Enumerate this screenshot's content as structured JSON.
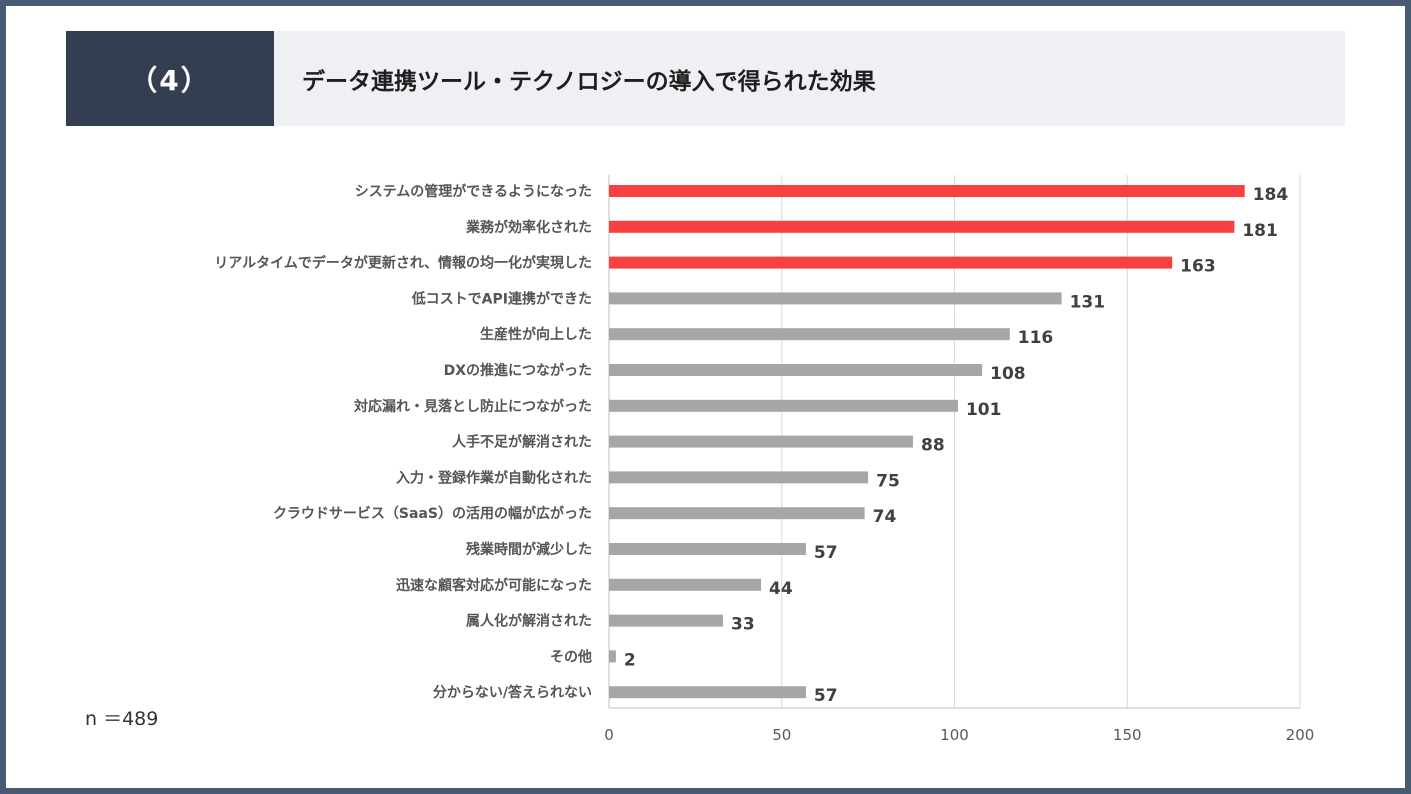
{
  "header": {
    "number": "（4）",
    "title": "データ連携ツール・テクノロジーの導入で得られた効果"
  },
  "sample_size": "n ＝489",
  "colors": {
    "highlight": "#f84040",
    "normal": "#a6a6a6",
    "header_dark": "#333e50",
    "header_light": "#eff0f4",
    "frame": "#495a73"
  },
  "chart_data": {
    "type": "bar",
    "orientation": "horizontal",
    "categories": [
      "システムの管理ができるようになった",
      "業務が効率化された",
      "リアルタイムでデータが更新され、情報の均一化が実現した",
      "低コストでAPI連携ができた",
      "生産性が向上した",
      "DXの推進につながった",
      "対応漏れ・見落とし防止につながった",
      "人手不足が解消された",
      "入力・登録作業が自動化された",
      "クラウドサービス（SaaS）の活用の幅が広がった",
      "残業時間が減少した",
      "迅速な顧客対応が可能になった",
      "属人化が解消された",
      "その他",
      "分からない/答えられない"
    ],
    "values": [
      184,
      181,
      163,
      131,
      116,
      108,
      101,
      88,
      75,
      74,
      57,
      44,
      33,
      2,
      57
    ],
    "highlighted": [
      true,
      true,
      true,
      false,
      false,
      false,
      false,
      false,
      false,
      false,
      false,
      false,
      false,
      false,
      false
    ],
    "xlim": [
      0,
      200
    ],
    "xticks": [
      0,
      50,
      100,
      150,
      200
    ],
    "grid": true,
    "title": "",
    "xlabel": "",
    "ylabel": ""
  }
}
